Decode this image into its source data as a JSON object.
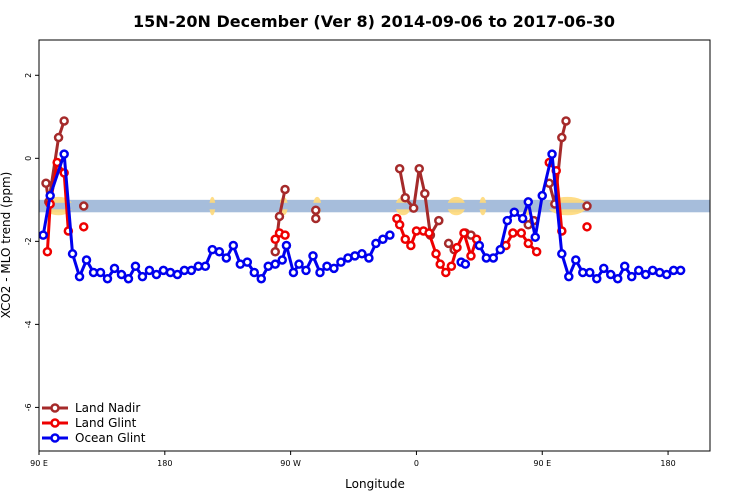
{
  "chart_data": {
    "type": "line",
    "title": "15N-20N December (Ver 8)   2014-09-06 to 2017-06-30",
    "xlabel": "Longitude",
    "ylabel": "XCO2 - MLO trend (ppm)",
    "xlim": [
      0,
      480
    ],
    "ylim": [
      -7.05,
      2.85
    ],
    "x_ticks": [
      {
        "value": 0,
        "label": "90 E"
      },
      {
        "value": 90,
        "label": "180"
      },
      {
        "value": 180,
        "label": "90 W"
      },
      {
        "value": 270,
        "label": "0"
      },
      {
        "value": 360,
        "label": "90 E"
      },
      {
        "value": 450,
        "label": "180"
      }
    ],
    "y_ticks": [
      {
        "value": 2,
        "label": "2"
      },
      {
        "value": 0,
        "label": "0"
      },
      {
        "value": -2,
        "label": "-2"
      },
      {
        "value": -4,
        "label": "-4"
      },
      {
        "value": -6,
        "label": "-6"
      }
    ],
    "background_band": {
      "y_center": -1.15,
      "height": 0.3,
      "color": "#a6bddb",
      "accent_color": "#ffd97a"
    },
    "series": [
      {
        "name": "Land Nadir",
        "color": "#a52a2a",
        "segments": [
          [
            [
              5,
              -0.6
            ],
            [
              7,
              -1.05
            ],
            [
              14,
              0.5
            ],
            [
              18,
              0.9
            ]
          ],
          [
            [
              32,
              -1.15
            ]
          ],
          [
            [
              169,
              -2.25
            ],
            [
              172,
              -1.4
            ],
            [
              176,
              -0.75
            ]
          ],
          [
            [
              198,
              -1.25
            ],
            [
              198,
              -1.45
            ]
          ],
          [
            [
              258,
              -0.25
            ],
            [
              262,
              -0.95
            ],
            [
              268,
              -1.2
            ],
            [
              272,
              -0.25
            ],
            [
              276,
              -0.85
            ],
            [
              280,
              -1.85
            ],
            [
              286,
              -1.5
            ]
          ],
          [
            [
              293,
              -2.05
            ],
            [
              297,
              -2.2
            ]
          ],
          [
            [
              305,
              -1.8
            ],
            [
              309,
              -1.85
            ]
          ],
          [
            [
              350,
              -1.6
            ],
            [
              354,
              -1.5
            ]
          ],
          [
            [
              365,
              -0.6
            ],
            [
              369,
              -1.1
            ],
            [
              374,
              0.5
            ],
            [
              377,
              0.9
            ]
          ],
          [
            [
              392,
              -1.15
            ]
          ]
        ]
      },
      {
        "name": "Land Glint",
        "color": "#ee0000",
        "segments": [
          [
            [
              6,
              -2.25
            ],
            [
              8,
              -1.1
            ],
            [
              13,
              -0.1
            ],
            [
              18,
              -0.35
            ],
            [
              21,
              -1.75
            ]
          ],
          [
            [
              32,
              -1.65
            ]
          ],
          [
            [
              169,
              -1.95
            ],
            [
              172,
              -1.8
            ],
            [
              176,
              -1.85
            ]
          ],
          [
            [
              256,
              -1.45
            ],
            [
              258,
              -1.6
            ],
            [
              262,
              -1.95
            ],
            [
              266,
              -2.1
            ],
            [
              270,
              -1.75
            ],
            [
              275,
              -1.75
            ],
            [
              279,
              -1.8
            ],
            [
              284,
              -2.3
            ],
            [
              287,
              -2.55
            ],
            [
              291,
              -2.75
            ],
            [
              295,
              -2.6
            ],
            [
              299,
              -2.15
            ],
            [
              304,
              -1.8
            ],
            [
              309,
              -2.35
            ],
            [
              313,
              -1.95
            ]
          ],
          [
            [
              334,
              -2.1
            ],
            [
              339,
              -1.8
            ],
            [
              345,
              -1.8
            ],
            [
              350,
              -2.05
            ],
            [
              356,
              -2.25
            ]
          ],
          [
            [
              365,
              -0.1
            ],
            [
              370,
              -0.3
            ],
            [
              374,
              -1.75
            ]
          ],
          [
            [
              392,
              -1.65
            ]
          ]
        ]
      },
      {
        "name": "Ocean Glint",
        "color": "#0000ee",
        "segments": [
          [
            [
              3,
              -1.85
            ],
            [
              8,
              -0.9
            ],
            [
              18,
              0.1
            ],
            [
              24,
              -2.3
            ],
            [
              29,
              -2.85
            ],
            [
              34,
              -2.45
            ],
            [
              39,
              -2.75
            ],
            [
              44,
              -2.75
            ],
            [
              49,
              -2.9
            ],
            [
              54,
              -2.65
            ],
            [
              59,
              -2.8
            ],
            [
              64,
              -2.9
            ],
            [
              69,
              -2.6
            ],
            [
              74,
              -2.85
            ],
            [
              79,
              -2.7
            ],
            [
              84,
              -2.8
            ],
            [
              89,
              -2.7
            ],
            [
              94,
              -2.75
            ],
            [
              99,
              -2.8
            ],
            [
              104,
              -2.7
            ],
            [
              109,
              -2.7
            ],
            [
              114,
              -2.6
            ],
            [
              119,
              -2.6
            ],
            [
              124,
              -2.2
            ],
            [
              129,
              -2.25
            ],
            [
              134,
              -2.4
            ],
            [
              139,
              -2.1
            ],
            [
              144,
              -2.55
            ],
            [
              149,
              -2.5
            ],
            [
              154,
              -2.75
            ],
            [
              159,
              -2.9
            ],
            [
              164,
              -2.6
            ],
            [
              169,
              -2.55
            ],
            [
              174,
              -2.45
            ],
            [
              177,
              -2.1
            ],
            [
              182,
              -2.75
            ],
            [
              186,
              -2.55
            ],
            [
              191,
              -2.7
            ],
            [
              196,
              -2.35
            ],
            [
              201,
              -2.75
            ],
            [
              206,
              -2.6
            ],
            [
              211,
              -2.65
            ],
            [
              216,
              -2.5
            ],
            [
              221,
              -2.4
            ],
            [
              226,
              -2.35
            ],
            [
              231,
              -2.3
            ],
            [
              236,
              -2.4
            ],
            [
              241,
              -2.05
            ],
            [
              246,
              -1.95
            ],
            [
              251,
              -1.85
            ]
          ],
          [
            [
              302,
              -2.5
            ],
            [
              305,
              -2.55
            ]
          ],
          [
            [
              315,
              -2.1
            ],
            [
              320,
              -2.4
            ],
            [
              325,
              -2.4
            ],
            [
              330,
              -2.2
            ],
            [
              335,
              -1.5
            ],
            [
              340,
              -1.3
            ],
            [
              346,
              -1.45
            ],
            [
              350,
              -1.05
            ],
            [
              355,
              -1.9
            ],
            [
              360,
              -0.9
            ],
            [
              367,
              0.1
            ],
            [
              374,
              -2.3
            ],
            [
              379,
              -2.85
            ],
            [
              384,
              -2.45
            ],
            [
              389,
              -2.75
            ],
            [
              394,
              -2.75
            ],
            [
              399,
              -2.9
            ],
            [
              404,
              -2.65
            ],
            [
              409,
              -2.8
            ],
            [
              414,
              -2.9
            ],
            [
              419,
              -2.6
            ],
            [
              424,
              -2.85
            ],
            [
              429,
              -2.7
            ],
            [
              434,
              -2.8
            ],
            [
              439,
              -2.7
            ],
            [
              444,
              -2.75
            ],
            [
              449,
              -2.8
            ],
            [
              454,
              -2.7
            ],
            [
              459,
              -2.7
            ]
          ]
        ]
      }
    ]
  }
}
